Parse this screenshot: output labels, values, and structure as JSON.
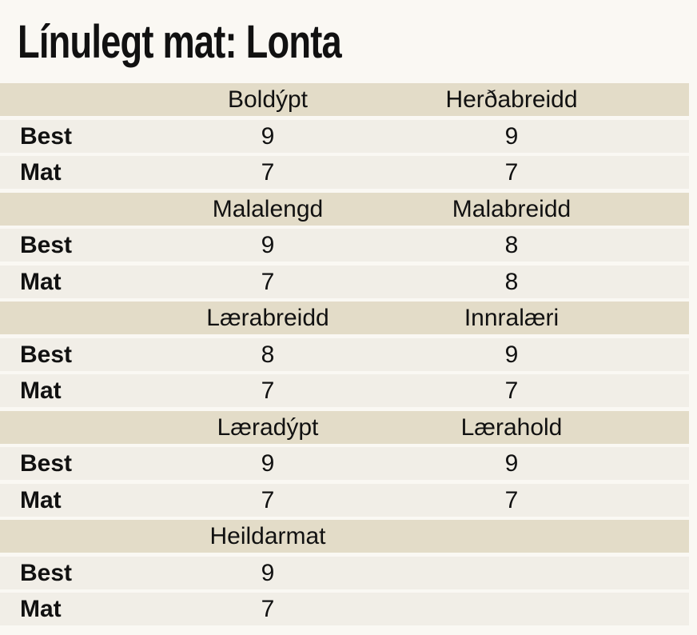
{
  "title": "Línulegt mat: Lonta",
  "row_labels": {
    "best": "Best",
    "mat": "Mat"
  },
  "groups": [
    {
      "headers": [
        "Boldýpt",
        "Herðabreidd"
      ],
      "best": [
        "9",
        "9"
      ],
      "mat": [
        "7",
        "7"
      ]
    },
    {
      "headers": [
        "Malalengd",
        "Malabreidd"
      ],
      "best": [
        "9",
        "8"
      ],
      "mat": [
        "7",
        "8"
      ]
    },
    {
      "headers": [
        "Lærabreidd",
        "Innralæri"
      ],
      "best": [
        "8",
        "9"
      ],
      "mat": [
        "7",
        "7"
      ]
    },
    {
      "headers": [
        "Læradýpt",
        "Lærahold"
      ],
      "best": [
        "9",
        "9"
      ],
      "mat": [
        "7",
        "7"
      ]
    },
    {
      "headers": [
        "Heildarmat",
        ""
      ],
      "best": [
        "9",
        ""
      ],
      "mat": [
        "7",
        ""
      ]
    }
  ]
}
